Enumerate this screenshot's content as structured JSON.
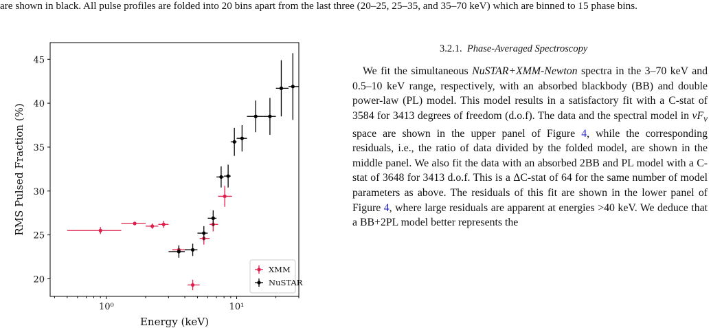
{
  "caption": "are shown in black. All pulse profiles are folded into 20 bins apart from the last three (20–25, 25–35, and 35–70 keV) which are binned to 15 phase bins.",
  "section": {
    "number": "3.2.1.",
    "title": "Phase-Averaged Spectroscopy",
    "paragraph": [
      "We fit the simultaneous ",
      "NuSTAR+XMM-Newton",
      " spectra in the 3–70 keV and 0.5–10 keV range, respectively, with an absorbed blackbody (BB) and double power-law (PL) model. This model results in a satisfactory fit with a C-stat of 3584 for 3413 degrees of freedom (d.o.f). The data and the spectral model in ",
      "νF",
      "ν",
      " space are shown in the upper panel of Figure ",
      "4",
      ", while the corresponding residuals, i.e., the ratio of data divided by the folded model, are shown in the middle panel. We also fit the data with an absorbed 2BB and PL model with a C-stat of 3648 for 3413 d.o.f. This is a ΔC-stat of 64 for the same number of model parameters as above. The residuals of this fit are shown in the lower panel of Figure ",
      "4",
      ", where large residuals are apparent at energies >40 keV. We deduce that a BB+2PL model better represents the"
    ]
  },
  "chart_data": {
    "type": "errorbar",
    "x_label": "Energy (keV)",
    "y_label": "RMS Pulsed Fraction (%)",
    "x_log": true,
    "xlim": [
      0.37,
      30
    ],
    "ylim": [
      18.0,
      46.9
    ],
    "xticks": [
      {
        "value": 1,
        "label": "10⁰"
      },
      {
        "value": 10,
        "label": "10¹"
      }
    ],
    "xminor_ticks": [
      0.4,
      0.5,
      0.6,
      0.7,
      0.8,
      0.9,
      2,
      3,
      4,
      5,
      6,
      7,
      8,
      9,
      20,
      30
    ],
    "yticks": [
      20,
      25,
      30,
      35,
      40,
      45
    ],
    "legend": "lower right",
    "series": [
      {
        "name": "XMM",
        "color": "#dc1f4b",
        "x": [
          0.9,
          1.65,
          2.25,
          2.75,
          3.6,
          4.6,
          5.6,
          6.6,
          8.1
        ],
        "x_lo": [
          0.5,
          1.3,
          2.0,
          2.5,
          3.2,
          4.2,
          5.2,
          6.2,
          7.2
        ],
        "x_hi": [
          1.3,
          2.0,
          2.5,
          3.0,
          4.2,
          5.2,
          6.2,
          7.2,
          9.2
        ],
        "values": [
          25.5,
          26.3,
          26.0,
          26.2,
          23.3,
          19.3,
          24.6,
          26.2,
          29.4
        ],
        "yerr": [
          0.4,
          0.2,
          0.3,
          0.4,
          0.5,
          0.6,
          0.7,
          0.8,
          1.2
        ]
      },
      {
        "name": "NuSTAR",
        "color": "#000000",
        "x": [
          3.6,
          4.6,
          5.6,
          6.6,
          7.6,
          8.6,
          9.6,
          11,
          14,
          18,
          22,
          27
        ],
        "x_lo": [
          3.0,
          4.0,
          5.0,
          6.0,
          7.0,
          8.0,
          9.0,
          10.0,
          12.0,
          16.0,
          20.0,
          25.0
        ],
        "x_hi": [
          4.0,
          5.0,
          6.0,
          7.0,
          8.0,
          9.0,
          10.0,
          12.0,
          16.0,
          20.0,
          25.0,
          30.0
        ],
        "values": [
          23.1,
          23.3,
          25.2,
          26.9,
          31.6,
          31.7,
          35.6,
          36.0,
          38.5,
          38.5,
          41.7,
          41.9
        ],
        "yerr": [
          0.7,
          0.7,
          0.8,
          0.9,
          1.2,
          1.3,
          1.6,
          1.5,
          1.8,
          2.1,
          3.2,
          3.8
        ]
      }
    ]
  }
}
